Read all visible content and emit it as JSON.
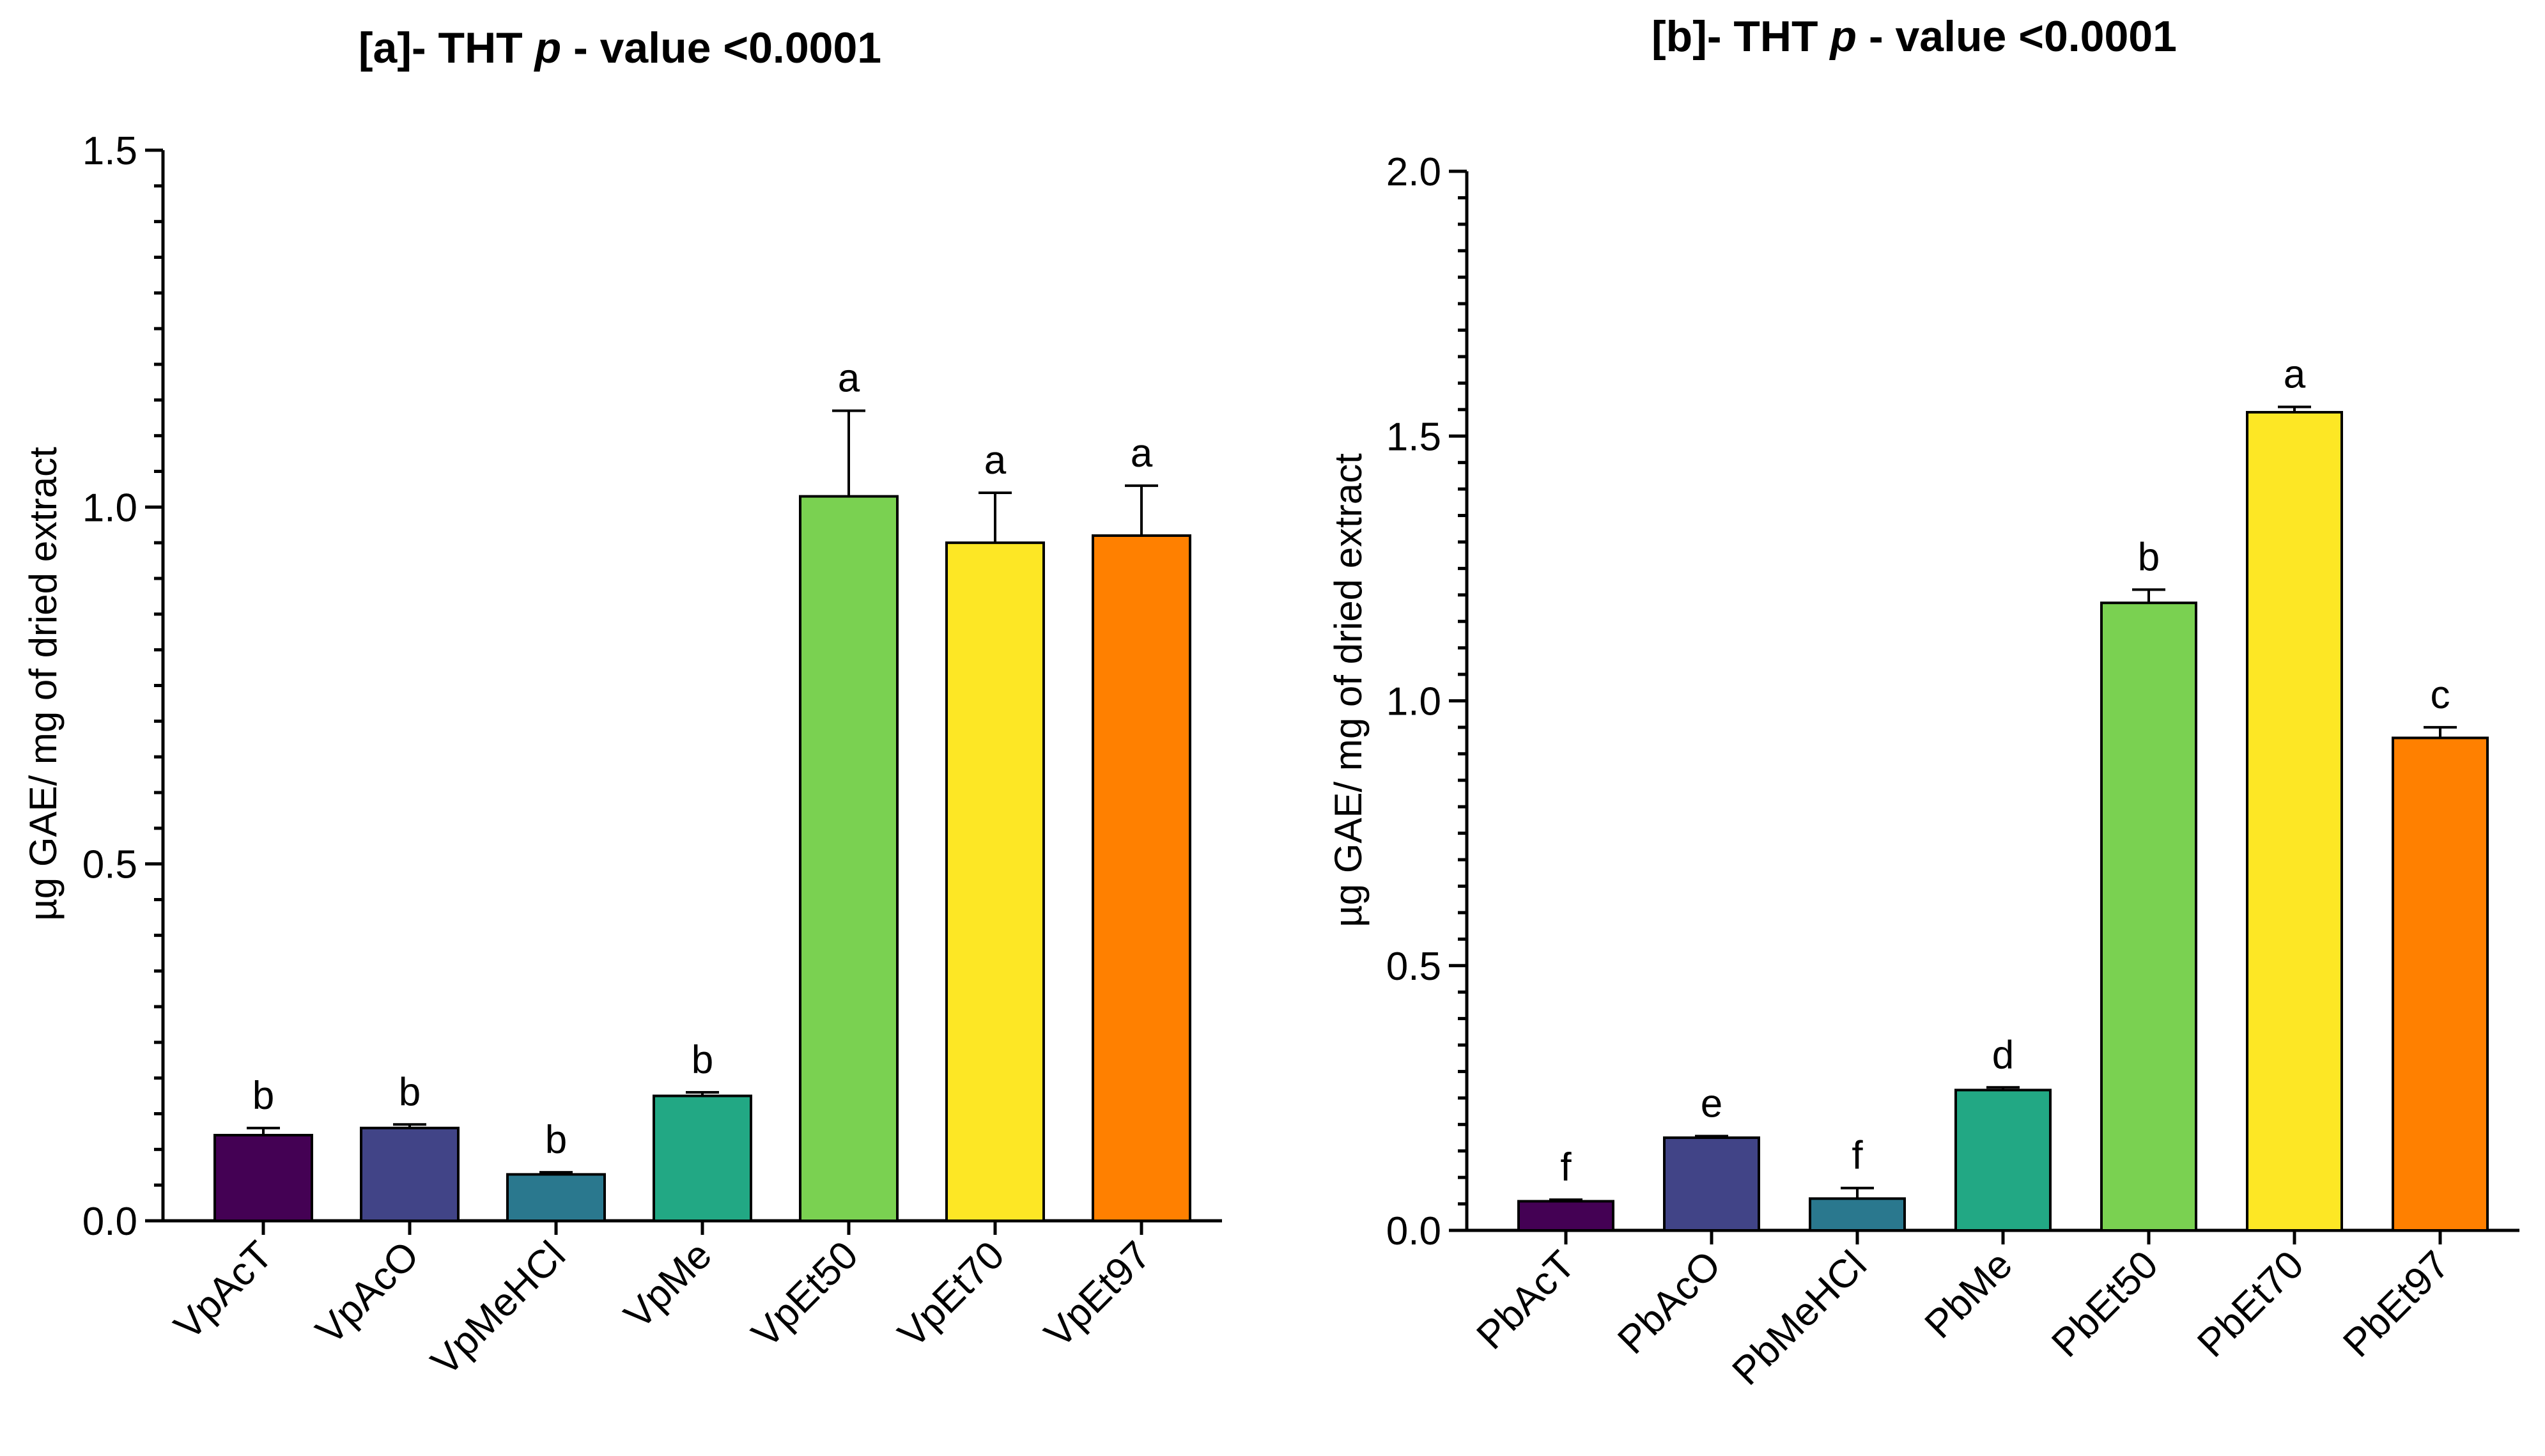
{
  "chart_data": [
    {
      "type": "bar",
      "title_prefix": "[a]- THT",
      "title_p": "p",
      "title_suffix": "- value   <0.0001",
      "ylabel": "µg GAE/ mg of dried extract",
      "xlabel": "",
      "ylim": [
        0,
        1.5
      ],
      "yticks": [
        "0.0",
        "0.5",
        "1.0",
        "1.5"
      ],
      "ytick_values": [
        0,
        0.5,
        1.0,
        1.5
      ],
      "categories": [
        "VpAcT",
        "VpAcO",
        "VpMeHCl",
        "VpMe",
        "VpEt50",
        "VpEt70",
        "VpEt97"
      ],
      "values": [
        0.12,
        0.13,
        0.065,
        0.175,
        1.015,
        0.95,
        0.96
      ],
      "errors": [
        0.01,
        0.005,
        0.003,
        0.005,
        0.12,
        0.07,
        0.07
      ],
      "letters": [
        "b",
        "b",
        "b",
        "b",
        "a",
        "a",
        "a"
      ],
      "colors": [
        "#440154",
        "#414487",
        "#2a788e",
        "#22a884",
        "#7ad151",
        "#fde725",
        "#ff8000"
      ]
    },
    {
      "type": "bar",
      "title_prefix": "[b]- THT",
      "title_p": "p",
      "title_suffix": "- value   <0.0001",
      "ylabel": "µg GAE/ mg of dried extract",
      "xlabel": "",
      "ylim": [
        0,
        2.0
      ],
      "yticks": [
        "0.0",
        "0.5",
        "1.0",
        "1.5",
        "2.0"
      ],
      "ytick_values": [
        0,
        0.5,
        1.0,
        1.5,
        2.0
      ],
      "categories": [
        "PbAcT",
        "PbAcO",
        "PbMeHCl",
        "PbMe",
        "PbEt50",
        "PbEt70",
        "PbEt97"
      ],
      "values": [
        0.055,
        0.175,
        0.06,
        0.265,
        1.185,
        1.545,
        0.93
      ],
      "errors": [
        0.003,
        0.003,
        0.02,
        0.005,
        0.025,
        0.01,
        0.02
      ],
      "letters": [
        "f",
        "e",
        "f",
        "d",
        "b",
        "a",
        "c"
      ],
      "colors": [
        "#440154",
        "#414487",
        "#2a788e",
        "#22a884",
        "#7ad151",
        "#fde725",
        "#ff8000"
      ]
    }
  ]
}
